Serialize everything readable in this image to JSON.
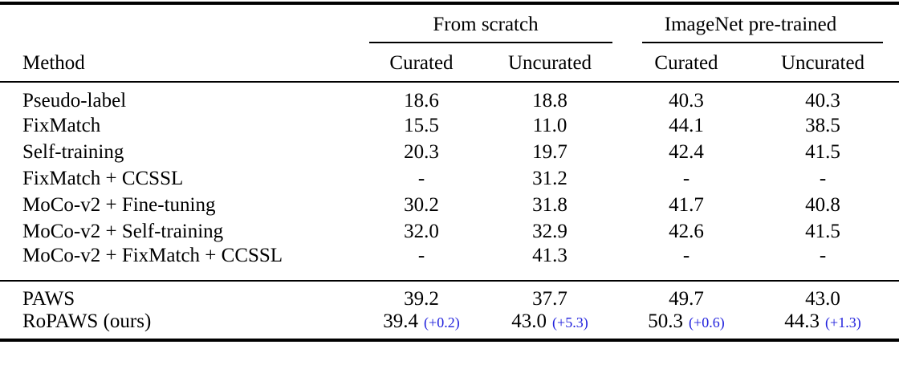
{
  "colors": {
    "text": "#000000",
    "rule": "#000000",
    "gain_blue": "#2222dd",
    "background": "#ffffff"
  },
  "table": {
    "method_header": "Method",
    "groups": [
      {
        "label": "From scratch"
      },
      {
        "label": "ImageNet pre-trained"
      }
    ],
    "sub_headers": [
      "Curated",
      "Uncurated",
      "Curated",
      "Uncurated"
    ],
    "sections": [
      {
        "rows": [
          {
            "method": "Pseudo-label",
            "values": [
              "18.6",
              "18.8",
              "40.3",
              "40.3"
            ]
          },
          {
            "method": "FixMatch",
            "values": [
              "15.5",
              "11.0",
              "44.1",
              "38.5"
            ]
          },
          {
            "method": "Self-training",
            "values": [
              "20.3",
              "19.7",
              "42.4",
              "41.5"
            ]
          },
          {
            "method": "FixMatch + CCSSL",
            "values": [
              "-",
              "31.2",
              "-",
              "-"
            ]
          },
          {
            "method": "MoCo-v2 + Fine-tuning",
            "values": [
              "30.2",
              "31.8",
              "41.7",
              "40.8"
            ]
          },
          {
            "method": "MoCo-v2 + Self-training",
            "values": [
              "32.0",
              "32.9",
              "42.6",
              "41.5"
            ]
          },
          {
            "method": "MoCo-v2 + FixMatch + CCSSL",
            "values": [
              "-",
              "41.3",
              "-",
              "-"
            ]
          }
        ]
      },
      {
        "rows": [
          {
            "method": "PAWS",
            "values": [
              "39.2",
              "37.7",
              "49.7",
              "43.0"
            ]
          },
          {
            "method": "RoPAWS (ours)",
            "values": [
              "39.4",
              "43.0",
              "50.3",
              "44.3"
            ],
            "diffs": [
              "(+0.2)",
              "(+5.3)",
              "(+0.6)",
              "(+1.3)"
            ]
          }
        ]
      }
    ]
  }
}
